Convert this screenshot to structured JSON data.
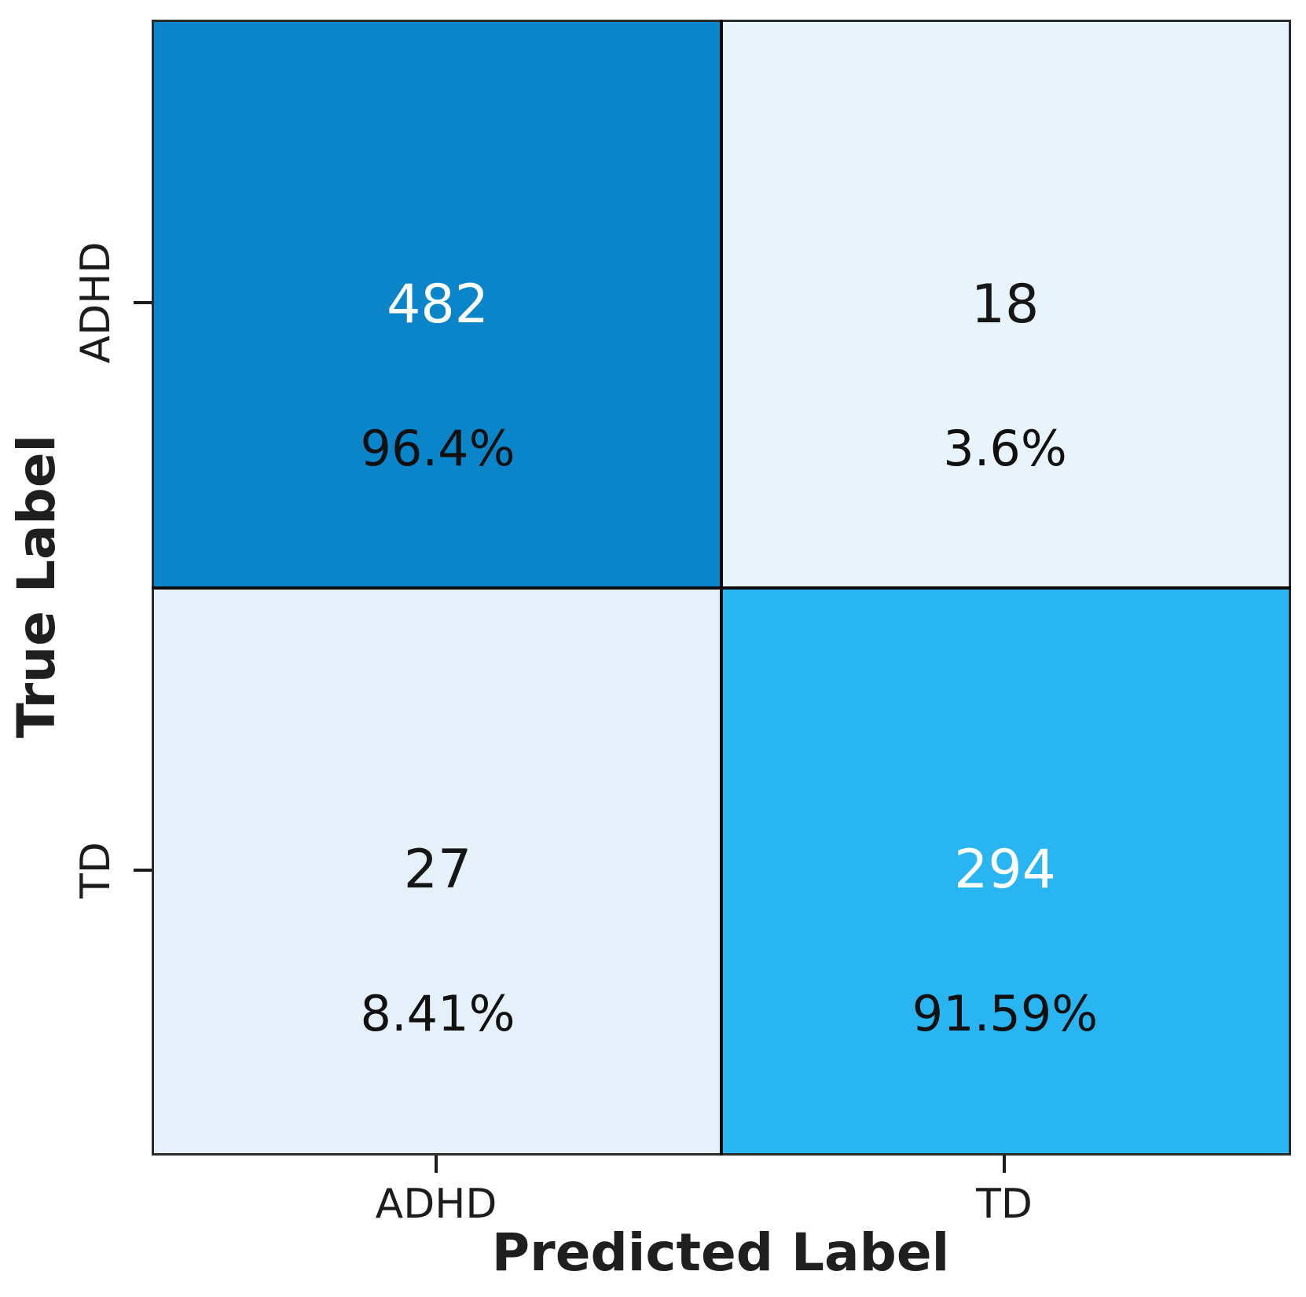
{
  "chart_data": {
    "type": "heatmap",
    "subtype": "confusion_matrix",
    "title": "",
    "xlabel": "Predicted Label",
    "ylabel": "True Label",
    "x_ticks": [
      "ADHD",
      "TD"
    ],
    "y_ticks": [
      "ADHD",
      "TD"
    ],
    "matrix_counts": [
      [
        482,
        18
      ],
      [
        27,
        294
      ]
    ],
    "matrix_row_percents": [
      [
        96.4,
        3.6
      ],
      [
        8.41,
        91.59
      ]
    ],
    "grid": false,
    "legend": "none",
    "cells": [
      {
        "true_label": "ADHD",
        "predicted_label": "ADHD",
        "count": "482",
        "percent": "96.4%",
        "bg": "#0b85c9",
        "count_color": "#ffffff",
        "percent_color": "#101010"
      },
      {
        "true_label": "ADHD",
        "predicted_label": "TD",
        "count": "18",
        "percent": "3.6%",
        "bg": "#e9f3fc",
        "count_color": "#161616",
        "percent_color": "#101010"
      },
      {
        "true_label": "TD",
        "predicted_label": "ADHD",
        "count": "27",
        "percent": "8.41%",
        "bg": "#e5f0fa",
        "count_color": "#161616",
        "percent_color": "#101010"
      },
      {
        "true_label": "TD",
        "predicted_label": "TD",
        "count": "294",
        "percent": "91.59%",
        "bg": "#29b4f2",
        "count_color": "#ffffff",
        "percent_color": "#101010"
      }
    ],
    "line_color": "#0c0c0c",
    "border_color": "#2b2b2b"
  }
}
